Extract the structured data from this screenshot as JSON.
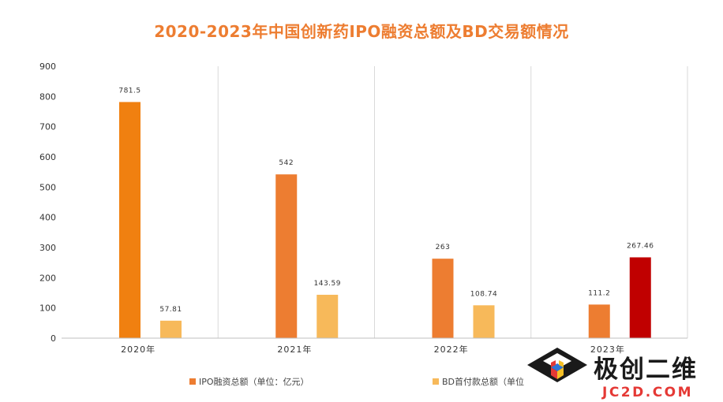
{
  "chart_data": {
    "type": "bar",
    "title": "2020-2023年中国创新药IPO融资总额及BD交易额情况",
    "categories": [
      "2020年",
      "2021年",
      "2022年",
      "2023年"
    ],
    "series": [
      {
        "name": "IPO融资总额（单位：亿元）",
        "values": [
          781.5,
          542,
          263,
          111.2
        ],
        "value_labels": [
          "781.5",
          "542",
          "263",
          "111.2"
        ],
        "point_colors": [
          "#F08010",
          "#ED7D31",
          "#ED7D31",
          "#ED7D31"
        ]
      },
      {
        "name": "BD首付款总额（单位",
        "values": [
          57.81,
          143.59,
          108.74,
          267.46
        ],
        "value_labels": [
          "57.81",
          "143.59",
          "108.74",
          "267.46"
        ],
        "point_colors": [
          "#F7B95A",
          "#F7B95A",
          "#F7B95A",
          "#C00000"
        ]
      }
    ],
    "ylim": [
      0,
      900
    ],
    "yticks": [
      "0",
      "100",
      "200",
      "300",
      "400",
      "500",
      "600",
      "700",
      "800",
      "900"
    ],
    "grid": false,
    "legend_position": "bottom",
    "colors": {
      "title": "#ED7D31",
      "ipo": "#ED7D31",
      "bd": "#F7B95A",
      "axis": "#BFBFBF",
      "separator": "#D9D9D9"
    }
  },
  "watermark": {
    "brand": "极创二维",
    "url": "JC2D.COM"
  }
}
